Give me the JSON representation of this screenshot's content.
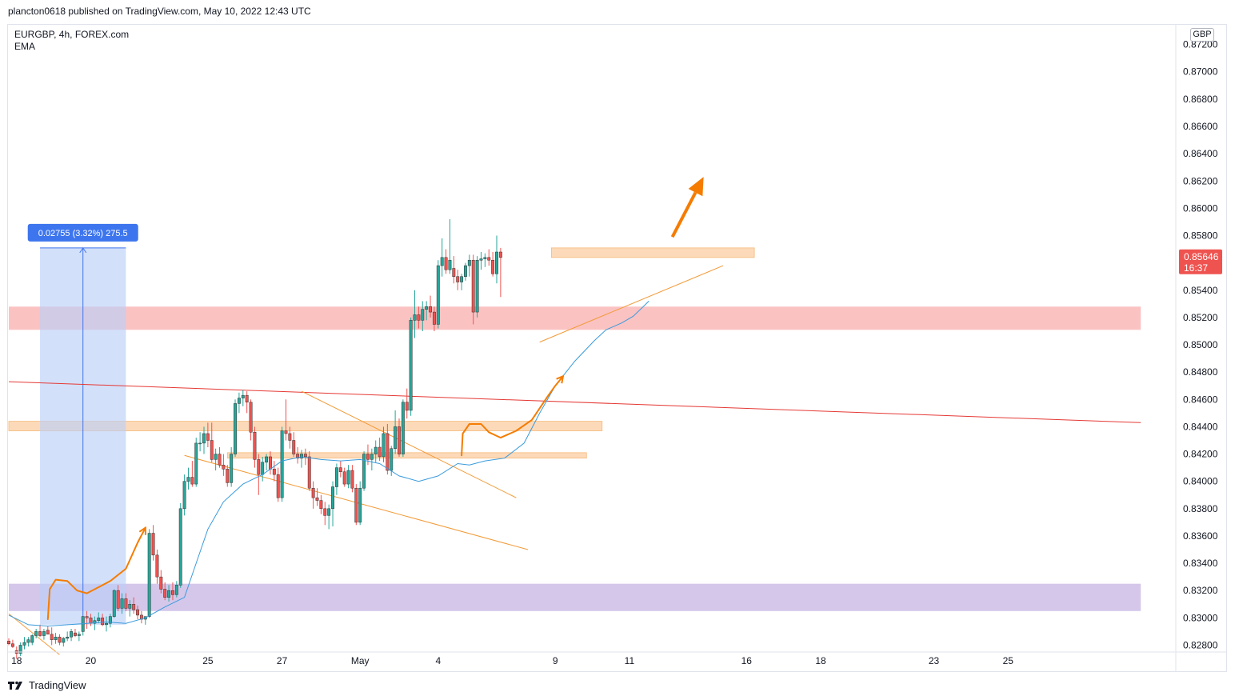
{
  "header": {
    "publish_line": "plancton0618 published on TradingView.com, May 10, 2022 12:43 UTC"
  },
  "symbol": {
    "title": "EURGBP, 4h, FOREX.com",
    "indicator": "EMA",
    "currency": "GBP"
  },
  "footer": {
    "brand": "TradingView"
  },
  "colors": {
    "up": "#26a69a",
    "down": "#ef5350",
    "wick": "#555555",
    "ema": "#3a9bdc",
    "trendline": "#f29b38",
    "resistance_line": "#e53935",
    "zone_orange": "#fbcb9b",
    "zone_red": "#f9a8a8",
    "zone_purple": "#c5b4e3",
    "measure_fill": "#bcd0f7",
    "measure_label": "#3d75ee",
    "arrow": "#f57c00",
    "price_tag": "#ef5350"
  },
  "chart_data": {
    "type": "candlestick",
    "symbol": "EURGBP",
    "timeframe": "4h",
    "ylim": [
      0.8275,
      0.8735
    ],
    "y_ticks": [
      "0.82800",
      "0.83000",
      "0.83200",
      "0.83400",
      "0.83600",
      "0.83800",
      "0.84000",
      "0.84200",
      "0.84400",
      "0.84600",
      "0.84800",
      "0.85000",
      "0.85200",
      "0.85400",
      "0.85600",
      "0.85800",
      "0.86000",
      "0.86200",
      "0.86400",
      "0.86600",
      "0.86800",
      "0.87000",
      "0.87200"
    ],
    "x_labels": [
      "18",
      "20",
      "25",
      "27",
      "May",
      "4",
      "9",
      "11",
      "16",
      "18",
      "23",
      "25"
    ],
    "x_label_index": [
      2,
      21,
      51,
      70,
      90,
      110,
      140,
      159,
      189,
      208,
      237,
      256
    ],
    "current_price": {
      "value": "0.85646",
      "countdown": "16:37",
      "price": 0.85646
    },
    "measure": {
      "label": "0.02755 (3.32%) 275.5",
      "from_index": 8,
      "to_index": 30,
      "low": 0.8295,
      "high": 0.8571
    },
    "zones": [
      {
        "name": "resistance-zone-top",
        "color": "zone_orange",
        "y1": 0.8564,
        "y2": 0.8571,
        "x1": 139,
        "x2": 191
      },
      {
        "name": "support-zone-red",
        "color": "zone_red",
        "y1": 0.8511,
        "y2": 0.8528,
        "x1": 0,
        "x2": 290
      },
      {
        "name": "zone-orange-mid",
        "color": "zone_orange",
        "y1": 0.8437,
        "y2": 0.8444,
        "x1": 0,
        "x2": 152
      },
      {
        "name": "zone-orange-low",
        "color": "zone_orange",
        "y1": 0.8417,
        "y2": 0.8421,
        "x1": 56,
        "x2": 148
      },
      {
        "name": "demand-zone-purple",
        "color": "zone_purple",
        "y1": 0.8305,
        "y2": 0.8325,
        "x1": 0,
        "x2": 290
      }
    ],
    "lines": [
      {
        "name": "resistance-trendline",
        "color": "resistance_line",
        "width": 1,
        "points": [
          [
            0,
            0.8473
          ],
          [
            290,
            0.8443
          ]
        ]
      },
      {
        "name": "channel-upper",
        "color": "trendline",
        "width": 1,
        "points": [
          [
            75,
            0.8466
          ],
          [
            130,
            0.8388
          ]
        ]
      },
      {
        "name": "channel-lower",
        "color": "trendline",
        "width": 1,
        "points": [
          [
            45,
            0.8419
          ],
          [
            133,
            0.835
          ]
        ]
      },
      {
        "name": "rising-support",
        "color": "trendline",
        "width": 1,
        "points": [
          [
            136,
            0.8502
          ],
          [
            183,
            0.8558
          ]
        ]
      },
      {
        "name": "decline-left",
        "color": "trendline",
        "width": 1,
        "points": [
          [
            0,
            0.8303
          ],
          [
            13,
            0.8273
          ]
        ]
      }
    ],
    "ema": [
      [
        0,
        0.8302
      ],
      [
        5,
        0.8295
      ],
      [
        10,
        0.8294
      ],
      [
        20,
        0.8296
      ],
      [
        25,
        0.8297
      ],
      [
        30,
        0.8296
      ],
      [
        35,
        0.83
      ],
      [
        40,
        0.8308
      ],
      [
        45,
        0.8315
      ],
      [
        48,
        0.834
      ],
      [
        51,
        0.8365
      ],
      [
        55,
        0.8385
      ],
      [
        60,
        0.8398
      ],
      [
        65,
        0.8405
      ],
      [
        70,
        0.8415
      ],
      [
        75,
        0.8418
      ],
      [
        80,
        0.8416
      ],
      [
        85,
        0.8415
      ],
      [
        90,
        0.8416
      ],
      [
        95,
        0.8413
      ],
      [
        100,
        0.8404
      ],
      [
        105,
        0.84
      ],
      [
        110,
        0.8404
      ],
      [
        115,
        0.8413
      ],
      [
        118,
        0.8412
      ],
      [
        122,
        0.8415
      ],
      [
        127,
        0.8417
      ],
      [
        132,
        0.8428
      ],
      [
        136,
        0.845
      ],
      [
        140,
        0.847
      ],
      [
        145,
        0.8488
      ],
      [
        150,
        0.8503
      ],
      [
        153,
        0.8511
      ],
      [
        157,
        0.8516
      ],
      [
        160,
        0.8521
      ],
      [
        164,
        0.8532
      ]
    ],
    "annotation_paths": [
      {
        "name": "cup-path-left",
        "points": [
          [
            10,
            0.8299
          ],
          [
            10.5,
            0.8321
          ],
          [
            12,
            0.8328
          ],
          [
            15,
            0.8327
          ],
          [
            17.5,
            0.832
          ],
          [
            20,
            0.8318
          ],
          [
            26,
            0.8327
          ],
          [
            30,
            0.8336
          ],
          [
            33,
            0.8355
          ],
          [
            35,
            0.8366
          ]
        ]
      },
      {
        "name": "cup-path-mid",
        "points": [
          [
            116,
            0.8419
          ],
          [
            116.3,
            0.8435
          ],
          [
            118,
            0.8442
          ],
          [
            121,
            0.8442
          ],
          [
            123,
            0.8436
          ],
          [
            126,
            0.8432
          ],
          [
            130,
            0.8437
          ],
          [
            134,
            0.8445
          ],
          [
            138,
            0.8462
          ],
          [
            140,
            0.847
          ],
          [
            142,
            0.8477
          ]
        ]
      }
    ],
    "target_arrow": {
      "from": [
        170,
        0.8579
      ],
      "to": [
        178,
        0.8623
      ]
    },
    "candles": [
      [
        0.8283,
        0.8285,
        0.828,
        0.8281
      ],
      [
        0.8281,
        0.8284,
        0.8278,
        0.8279
      ],
      [
        0.8276,
        0.8279,
        0.827,
        0.8274
      ],
      [
        0.8274,
        0.8282,
        0.8272,
        0.828
      ],
      [
        0.828,
        0.8286,
        0.8277,
        0.8282
      ],
      [
        0.8282,
        0.8286,
        0.8279,
        0.8284
      ],
      [
        0.8282,
        0.8288,
        0.828,
        0.8287
      ],
      [
        0.8287,
        0.8292,
        0.8285,
        0.829
      ],
      [
        0.829,
        0.8295,
        0.8286,
        0.8287
      ],
      [
        0.8287,
        0.8292,
        0.8284,
        0.829
      ],
      [
        0.8291,
        0.8294,
        0.8288,
        0.8288
      ],
      [
        0.8288,
        0.8293,
        0.828,
        0.8284
      ],
      [
        0.8284,
        0.8289,
        0.8281,
        0.8286
      ],
      [
        0.8286,
        0.8288,
        0.828,
        0.8282
      ],
      [
        0.8282,
        0.8286,
        0.8279,
        0.8285
      ],
      [
        0.8285,
        0.829,
        0.8283,
        0.8286
      ],
      [
        0.8286,
        0.8292,
        0.8283,
        0.829
      ],
      [
        0.8289,
        0.8292,
        0.8286,
        0.8287
      ],
      [
        0.8287,
        0.829,
        0.8283,
        0.8288
      ],
      [
        0.829,
        0.8301,
        0.8287,
        0.8301
      ],
      [
        0.8301,
        0.8305,
        0.8292,
        0.83
      ],
      [
        0.83,
        0.8303,
        0.8294,
        0.8296
      ],
      [
        0.8296,
        0.8301,
        0.8291,
        0.8298
      ],
      [
        0.8298,
        0.8304,
        0.8296,
        0.83
      ],
      [
        0.83,
        0.8303,
        0.8294,
        0.8295
      ],
      [
        0.8295,
        0.8301,
        0.829,
        0.8296
      ],
      [
        0.8296,
        0.8303,
        0.8293,
        0.8301
      ],
      [
        0.8301,
        0.8321,
        0.83,
        0.832
      ],
      [
        0.832,
        0.8324,
        0.8305,
        0.8307
      ],
      [
        0.8307,
        0.8318,
        0.8303,
        0.8314
      ],
      [
        0.8314,
        0.8318,
        0.8305,
        0.8307
      ],
      [
        0.8307,
        0.8313,
        0.8301,
        0.831
      ],
      [
        0.831,
        0.8315,
        0.8303,
        0.8306
      ],
      [
        0.8306,
        0.8309,
        0.8299,
        0.8302
      ],
      [
        0.8302,
        0.8305,
        0.8296,
        0.8299
      ],
      [
        0.8299,
        0.8301,
        0.8295,
        0.8301
      ],
      [
        0.8301,
        0.8365,
        0.83,
        0.8362
      ],
      [
        0.8362,
        0.8368,
        0.8342,
        0.8346
      ],
      [
        0.8346,
        0.835,
        0.8325,
        0.833
      ],
      [
        0.833,
        0.8335,
        0.8318,
        0.8321
      ],
      [
        0.8321,
        0.8326,
        0.8313,
        0.8315
      ],
      [
        0.8315,
        0.8324,
        0.8312,
        0.832
      ],
      [
        0.832,
        0.8326,
        0.8313,
        0.8317
      ],
      [
        0.8317,
        0.8327,
        0.8315,
        0.8324
      ],
      [
        0.8324,
        0.8384,
        0.8322,
        0.838
      ],
      [
        0.838,
        0.8405,
        0.8375,
        0.84
      ],
      [
        0.84,
        0.841,
        0.8394,
        0.8403
      ],
      [
        0.8403,
        0.8415,
        0.8396,
        0.8398
      ],
      [
        0.8398,
        0.8432,
        0.8396,
        0.8428
      ],
      [
        0.8428,
        0.8436,
        0.8422,
        0.8428
      ],
      [
        0.8428,
        0.844,
        0.842,
        0.8435
      ],
      [
        0.8435,
        0.8443,
        0.8425,
        0.843
      ],
      [
        0.843,
        0.8443,
        0.8414,
        0.8416
      ],
      [
        0.8416,
        0.8424,
        0.8408,
        0.842
      ],
      [
        0.842,
        0.8425,
        0.841,
        0.8412
      ],
      [
        0.8412,
        0.842,
        0.8404,
        0.8409
      ],
      [
        0.8409,
        0.8412,
        0.8396,
        0.8399
      ],
      [
        0.8399,
        0.8425,
        0.8396,
        0.842
      ],
      [
        0.842,
        0.846,
        0.8418,
        0.8457
      ],
      [
        0.8457,
        0.8465,
        0.845,
        0.8461
      ],
      [
        0.8461,
        0.8467,
        0.8455,
        0.8463
      ],
      [
        0.8463,
        0.8466,
        0.845,
        0.8458
      ],
      [
        0.8458,
        0.846,
        0.843,
        0.8436
      ],
      [
        0.8436,
        0.844,
        0.841,
        0.8416
      ],
      [
        0.8416,
        0.842,
        0.839,
        0.8405
      ],
      [
        0.8405,
        0.8418,
        0.84,
        0.8414
      ],
      [
        0.8414,
        0.842,
        0.8408,
        0.8418
      ],
      [
        0.8418,
        0.8422,
        0.8405,
        0.8409
      ],
      [
        0.8409,
        0.8415,
        0.84,
        0.8405
      ],
      [
        0.8405,
        0.841,
        0.8385,
        0.8388
      ],
      [
        0.8388,
        0.844,
        0.8385,
        0.8437
      ],
      [
        0.8437,
        0.846,
        0.843,
        0.8435
      ],
      [
        0.8435,
        0.844,
        0.8424,
        0.843
      ],
      [
        0.843,
        0.8436,
        0.8418,
        0.842
      ],
      [
        0.842,
        0.8425,
        0.8413,
        0.8417
      ],
      [
        0.8417,
        0.8423,
        0.841,
        0.842
      ],
      [
        0.842,
        0.8424,
        0.8412,
        0.8418
      ],
      [
        0.8418,
        0.8422,
        0.8393,
        0.8395
      ],
      [
        0.8395,
        0.84,
        0.838,
        0.8388
      ],
      [
        0.8388,
        0.8395,
        0.8382,
        0.8386
      ],
      [
        0.8386,
        0.839,
        0.8376,
        0.838
      ],
      [
        0.838,
        0.8385,
        0.8368,
        0.8375
      ],
      [
        0.8375,
        0.8383,
        0.8365,
        0.838
      ],
      [
        0.838,
        0.84,
        0.8367,
        0.8396
      ],
      [
        0.8396,
        0.8413,
        0.839,
        0.841
      ],
      [
        0.841,
        0.8415,
        0.8403,
        0.8407
      ],
      [
        0.8407,
        0.841,
        0.8396,
        0.8398
      ],
      [
        0.8398,
        0.8412,
        0.8395,
        0.8408
      ],
      [
        0.8408,
        0.8412,
        0.8392,
        0.8395
      ],
      [
        0.8395,
        0.8398,
        0.8368,
        0.837
      ],
      [
        0.837,
        0.84,
        0.8368,
        0.8395
      ],
      [
        0.8395,
        0.8422,
        0.8393,
        0.842
      ],
      [
        0.842,
        0.8427,
        0.8412,
        0.8416
      ],
      [
        0.8416,
        0.8424,
        0.8408,
        0.842
      ],
      [
        0.842,
        0.843,
        0.8414,
        0.8425
      ],
      [
        0.8425,
        0.8432,
        0.8415,
        0.8418
      ],
      [
        0.8418,
        0.844,
        0.8414,
        0.8435
      ],
      [
        0.8435,
        0.8442,
        0.8405,
        0.8408
      ],
      [
        0.8408,
        0.8426,
        0.8404,
        0.8424
      ],
      [
        0.8424,
        0.8452,
        0.842,
        0.844
      ],
      [
        0.844,
        0.8446,
        0.8418,
        0.842
      ],
      [
        0.842,
        0.846,
        0.8418,
        0.8458
      ],
      [
        0.8458,
        0.8468,
        0.8446,
        0.8452
      ],
      [
        0.8452,
        0.852,
        0.8448,
        0.8518
      ],
      [
        0.8518,
        0.854,
        0.8505,
        0.8522
      ],
      [
        0.8522,
        0.8528,
        0.8512,
        0.8518
      ],
      [
        0.8518,
        0.8532,
        0.851,
        0.8526
      ],
      [
        0.8526,
        0.8532,
        0.8518,
        0.8528
      ],
      [
        0.8528,
        0.8536,
        0.852,
        0.8524
      ],
      [
        0.8524,
        0.8528,
        0.851,
        0.8515
      ],
      [
        0.8515,
        0.8562,
        0.8512,
        0.8558
      ],
      [
        0.8558,
        0.8578,
        0.855,
        0.8564
      ],
      [
        0.8564,
        0.857,
        0.8552,
        0.8555
      ],
      [
        0.8555,
        0.8592,
        0.8552,
        0.8562
      ],
      [
        0.8556,
        0.8565,
        0.8545,
        0.855
      ],
      [
        0.855,
        0.8555,
        0.854,
        0.8546
      ],
      [
        0.8546,
        0.8552,
        0.854,
        0.855
      ],
      [
        0.855,
        0.856,
        0.8547,
        0.8558
      ],
      [
        0.8558,
        0.8566,
        0.855,
        0.8562
      ],
      [
        0.8562,
        0.8566,
        0.8515,
        0.8524
      ],
      [
        0.8524,
        0.8565,
        0.852,
        0.8562
      ],
      [
        0.8562,
        0.8568,
        0.8555,
        0.8563
      ],
      [
        0.8563,
        0.8567,
        0.8557,
        0.8564
      ],
      [
        0.8564,
        0.857,
        0.8558,
        0.8562
      ],
      [
        0.8562,
        0.8568,
        0.855,
        0.8552
      ],
      [
        0.8552,
        0.858,
        0.8545,
        0.8568
      ],
      [
        0.8568,
        0.8571,
        0.8535,
        0.8564
      ]
    ]
  }
}
